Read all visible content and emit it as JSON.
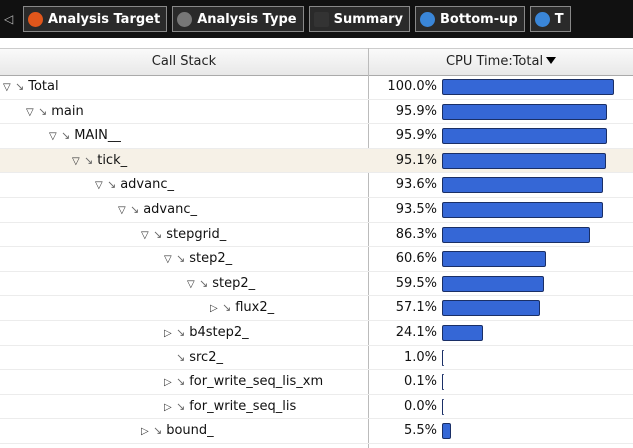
{
  "tabs": [
    "Analysis Target",
    "Analysis Type",
    "Summary",
    "Bottom-up",
    "T"
  ],
  "table": {
    "columns": [
      "Call Stack",
      "CPU Time:Total"
    ],
    "selected": "tick_",
    "rows": [
      {
        "label": "Total",
        "cpu": 100.0,
        "cpu_label": "100.0%",
        "children": [
          {
            "label": "main",
            "cpu": 95.9,
            "cpu_label": "95.9%",
            "children": [
              {
                "label": "MAIN__",
                "cpu": 95.9,
                "cpu_label": "95.9%",
                "children": [
                  {
                    "label": "tick_",
                    "cpu": 95.1,
                    "cpu_label": "95.1%",
                    "children": [
                      {
                        "label": "advanc_",
                        "cpu": 93.6,
                        "cpu_label": "93.6%",
                        "children": [
                          {
                            "label": "advanc_",
                            "cpu": 93.5,
                            "cpu_label": "93.5%",
                            "children": [
                              {
                                "label": "stepgrid_",
                                "cpu": 86.3,
                                "cpu_label": "86.3%",
                                "children": [
                                  {
                                    "label": "step2_",
                                    "cpu": 60.6,
                                    "cpu_label": "60.6%",
                                    "children": [
                                      {
                                        "label": "step2_",
                                        "cpu": 59.5,
                                        "cpu_label": "59.5%",
                                        "children": [
                                          {
                                            "label": "flux2_",
                                            "cpu": 57.1,
                                            "cpu_label": "57.1%",
                                            "collapsed": true
                                          }
                                        ]
                                      }
                                    ]
                                  },
                                  {
                                    "label": "b4step2_",
                                    "cpu": 24.1,
                                    "cpu_label": "24.1%",
                                    "collapsed": true
                                  },
                                  {
                                    "label": "src2_",
                                    "cpu": 1.0,
                                    "cpu_label": "1.0%"
                                  },
                                  {
                                    "label": "for_write_seq_lis_xm",
                                    "cpu": 0.1,
                                    "cpu_label": "0.1%",
                                    "collapsed": true
                                  },
                                  {
                                    "label": "for_write_seq_lis",
                                    "cpu": 0.0,
                                    "cpu_label": "0.0%",
                                    "collapsed": true
                                  }
                                ]
                              },
                              {
                                "label": "bound_",
                                "cpu": 5.5,
                                "cpu_label": "5.5%",
                                "collapsed": true
                              }
                            ]
                          }
                        ]
                      }
                    ]
                  }
                ]
              }
            ]
          }
        ]
      }
    ]
  }
}
